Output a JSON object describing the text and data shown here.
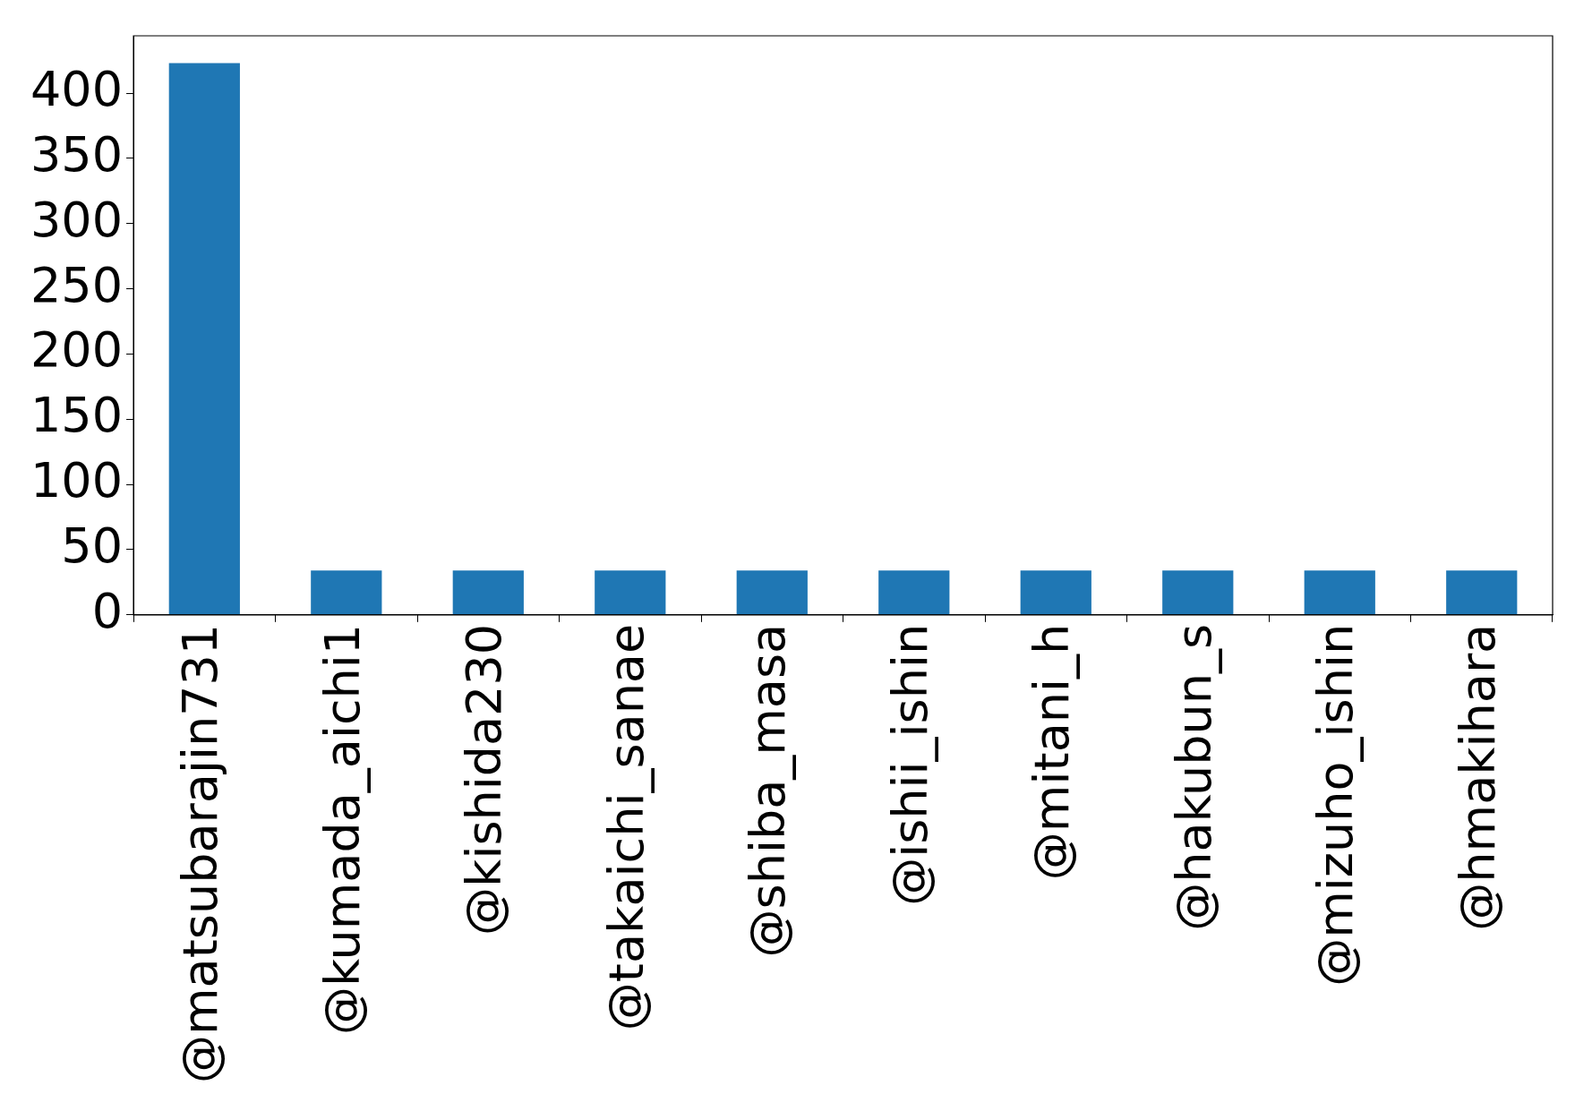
{
  "chart_data": {
    "type": "bar",
    "categories": [
      "@matsubarajin731",
      "@kumada_aichi1",
      "@kishida230",
      "@takaichi_sanae",
      "@shiba_masa",
      "@ishii_ishin",
      "@mitani_h",
      "@hakubun_s",
      "@mizuho_ishin",
      "@hmakihara"
    ],
    "values": [
      423,
      34,
      34,
      34,
      34,
      34,
      34,
      34,
      34,
      34
    ],
    "color": "#1f77b4",
    "ylim": [
      0,
      444
    ],
    "yticks": [
      0,
      50,
      100,
      150,
      200,
      250,
      300,
      350,
      400
    ],
    "grid": false,
    "legend": false
  }
}
